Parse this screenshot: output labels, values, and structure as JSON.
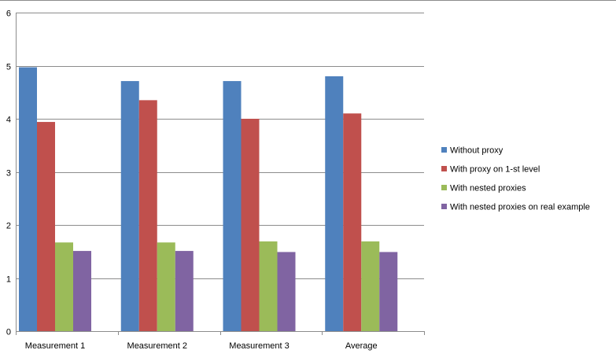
{
  "chart_data": {
    "type": "bar",
    "title": "",
    "xlabel": "",
    "ylabel": "",
    "ylim": [
      0,
      6
    ],
    "yticks": [
      "0",
      "1",
      "2",
      "3",
      "4",
      "5",
      "6"
    ],
    "grid": true,
    "legend_position": "right",
    "categories": [
      "Measurement 1",
      "Measurement 2",
      "Measurement 3",
      "Average"
    ],
    "series": [
      {
        "name": "Without proxy",
        "color": "#4f81bd",
        "values": [
          4.97,
          4.71,
          4.71,
          4.8
        ]
      },
      {
        "name": "With proxy on 1-st level",
        "color": "#c0504d",
        "values": [
          3.94,
          4.35,
          4.0,
          4.1
        ]
      },
      {
        "name": "With nested proxies",
        "color": "#9bbb59",
        "values": [
          1.67,
          1.67,
          1.69,
          1.69
        ]
      },
      {
        "name": "With nested proxies on real example",
        "color": "#8064a2",
        "values": [
          1.51,
          1.51,
          1.49,
          1.49
        ]
      }
    ]
  }
}
